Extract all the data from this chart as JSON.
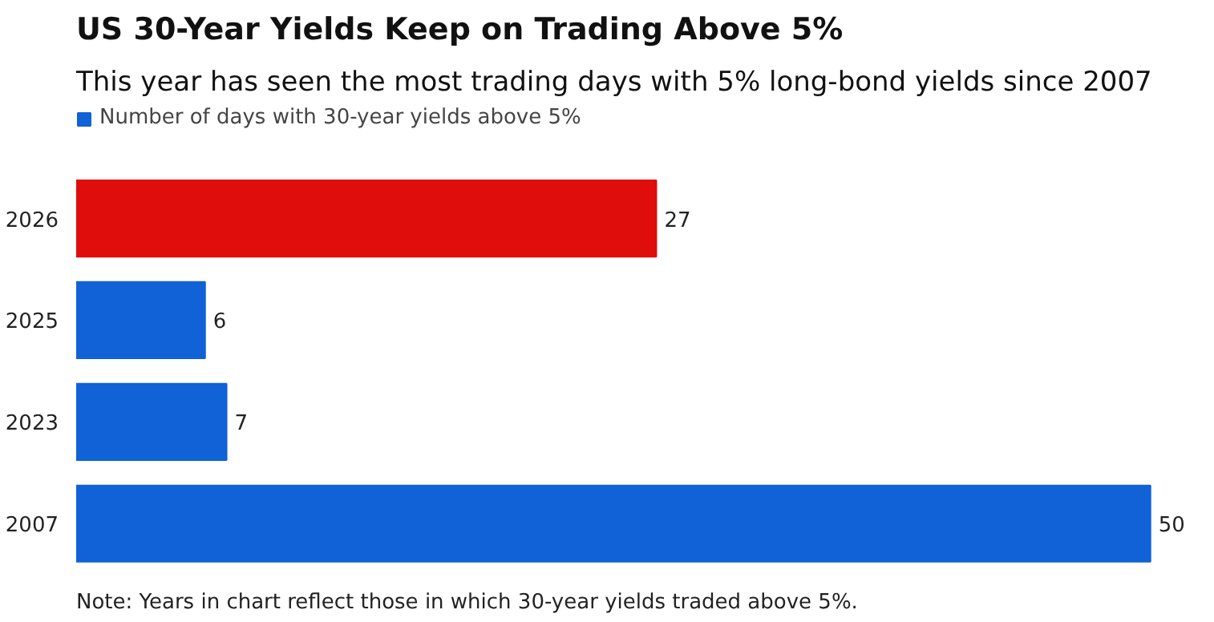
{
  "chart_data": {
    "type": "bar",
    "orientation": "horizontal",
    "title": "US 30-Year Yields Keep on Trading Above 5%",
    "subtitle": "This year has seen the most trading days with 5% long-bond yields since 2007",
    "categories": [
      "2026",
      "2025",
      "2023",
      "2007"
    ],
    "series": [
      {
        "name": "Number of days with 30-year yields above 5%",
        "color": "#1062d6",
        "colors": [
          "#e00d0d",
          "#1062d6",
          "#1062d6",
          "#1062d6"
        ],
        "values": [
          27,
          6,
          7,
          50
        ]
      }
    ],
    "data_labels": true,
    "legend": "top left",
    "annotations": [
      "Note: Years in chart reflect those in which 30-year yields traded above 5%."
    ]
  }
}
